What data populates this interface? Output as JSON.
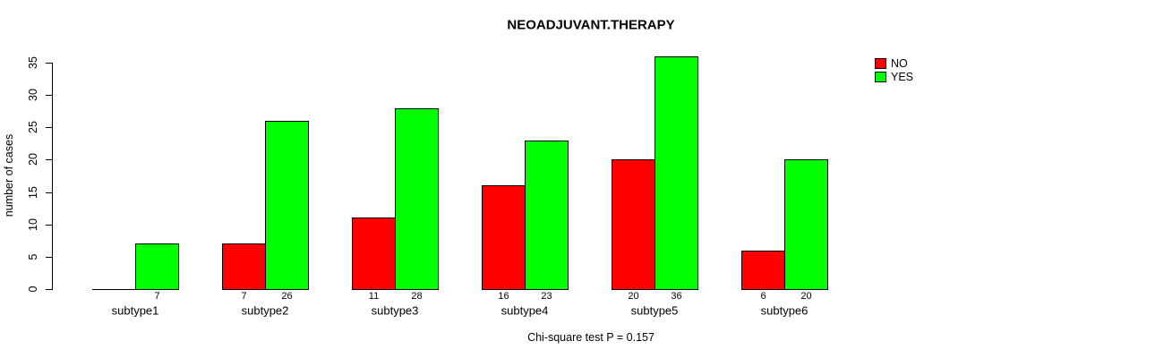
{
  "figure": {
    "title": "NEOADJUVANT.THERAPY",
    "annotation": "Chi-square test P = 0.157"
  },
  "chart_data": {
    "type": "bar",
    "title": "NEOADJUVANT.THERAPY",
    "xlabel": "",
    "ylabel": "number of cases",
    "categories": [
      "subtype1",
      "subtype2",
      "subtype3",
      "subtype4",
      "subtype5",
      "subtype6"
    ],
    "series": [
      {
        "name": "NO",
        "color": "#FF0000",
        "values": [
          0,
          7,
          11,
          16,
          20,
          6
        ]
      },
      {
        "name": "YES",
        "color": "#00FF00",
        "values": [
          7,
          26,
          28,
          23,
          36,
          20
        ]
      }
    ],
    "bar_value_labels": [
      "",
      "7",
      "7",
      "26",
      "11",
      "28",
      "16",
      "23",
      "20",
      "36",
      "6",
      "20"
    ],
    "yticks": [
      0,
      5,
      10,
      15,
      20,
      25,
      30,
      35
    ],
    "ylim": [
      0,
      36
    ],
    "grid": false,
    "legend": {
      "position": "top-right",
      "entries": [
        {
          "label": "NO",
          "color": "#FF0000"
        },
        {
          "label": "YES",
          "color": "#00FF00"
        }
      ]
    },
    "annotation": "Chi-square test P = 0.157"
  }
}
